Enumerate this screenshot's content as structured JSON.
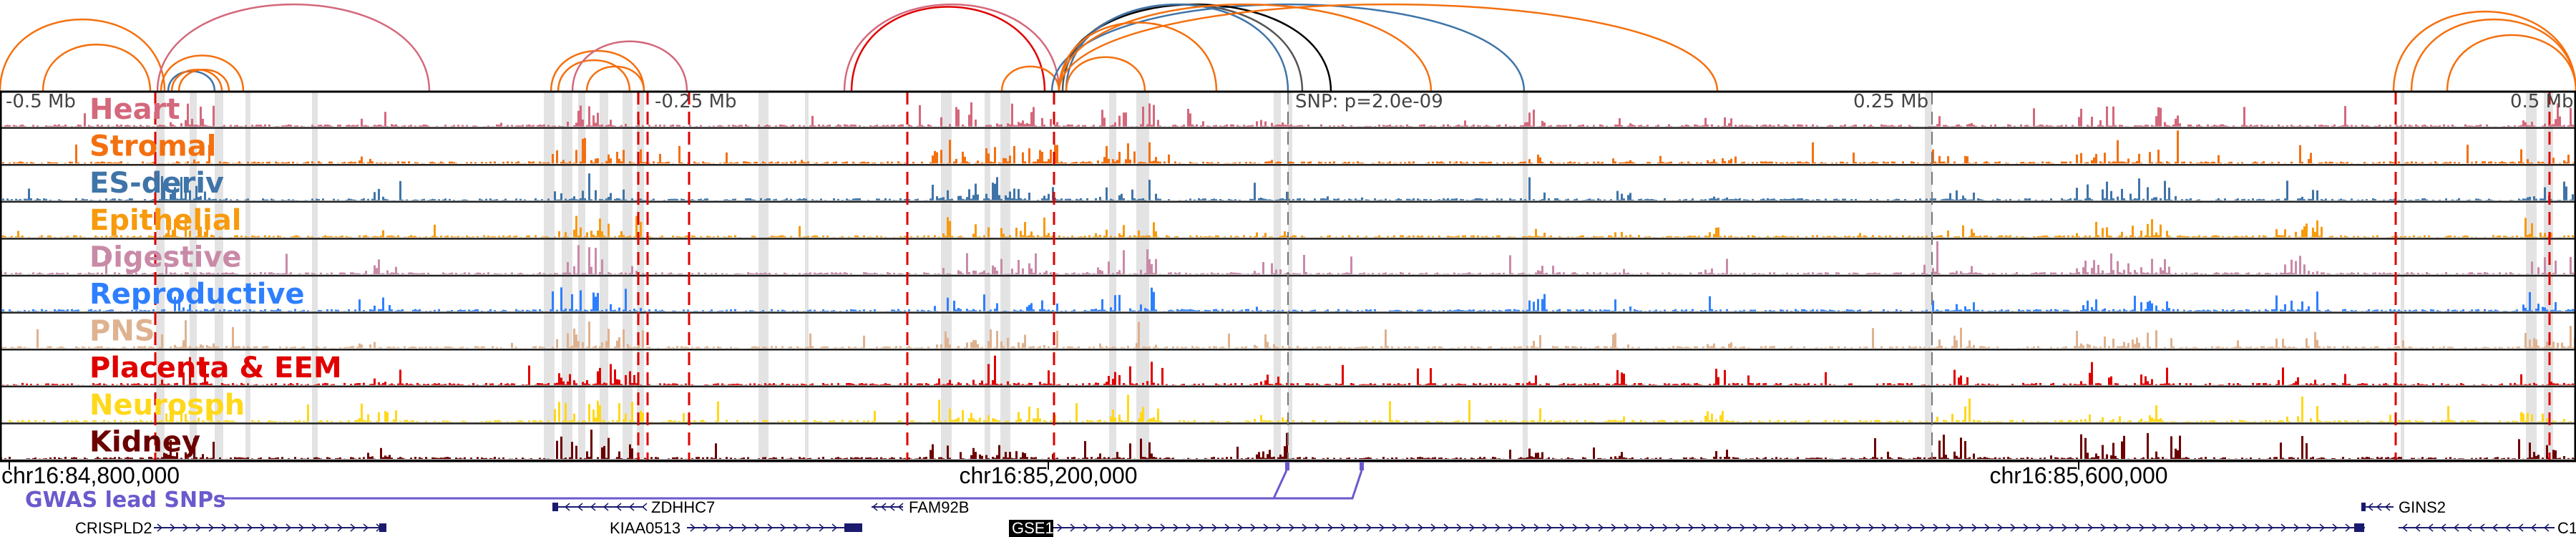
{
  "ruler": {
    "left_label": "-0.5 Mb",
    "neg_quarter_label": "-0.25 Mb",
    "snp_label": "SNP: p=2.0e-09",
    "pos_quarter_label": "0.25 Mb",
    "right_label": "0.5 Mb"
  },
  "tracks": [
    {
      "name": "Heart",
      "color": "#d4687c"
    },
    {
      "name": "Stromal",
      "color": "#f4700f"
    },
    {
      "name": "ES-deriv",
      "color": "#3f74a8"
    },
    {
      "name": "Epithelial",
      "color": "#f79a0c"
    },
    {
      "name": "Digestive",
      "color": "#c98aa8"
    },
    {
      "name": "Reproductive",
      "color": "#2e7fff"
    },
    {
      "name": "PNS",
      "color": "#dfb28f"
    },
    {
      "name": "Placenta & EEM",
      "color": "#e00000"
    },
    {
      "name": "Neurosph",
      "color": "#ffd81a"
    },
    {
      "name": "Kidney",
      "color": "#6b0000"
    }
  ],
  "axis": {
    "ticks": [
      "chr16:84,800,000",
      "chr16:85,200,000",
      "chr16:85,600,000"
    ]
  },
  "gwas": {
    "label": "GWAS lead SNPs",
    "color": "#6a5acd"
  },
  "genes": [
    "ZDHHC7",
    "FAM92B",
    "GINS2",
    "CRISPLD2",
    "KIAA0513",
    "GSE1",
    "C1"
  ]
}
